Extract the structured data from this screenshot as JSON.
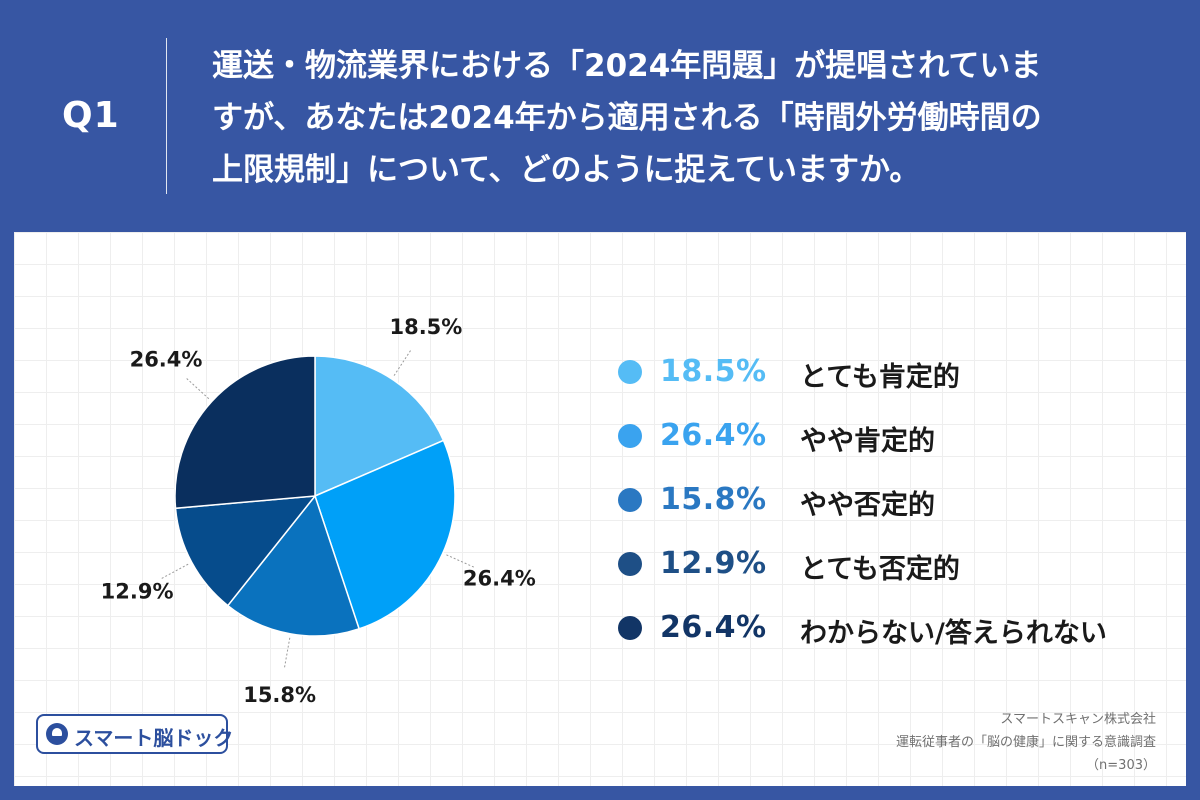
{
  "header": {
    "qnum": "Q1",
    "question_lines": [
      "運送・物流業界における「2024年問題」が提唱されていま",
      "すが、あなたは2024年から適用される「時間外労働時間の",
      "上限規制」について、どのように捉えていますか。"
    ]
  },
  "chart_data": {
    "type": "pie",
    "title": "",
    "start_angle_deg": 0,
    "direction": "clockwise",
    "categories": [
      "とても肯定的",
      "やや肯定的",
      "やや否定的",
      "とても否定的",
      "わからない/答えられない"
    ],
    "values": [
      18.5,
      26.4,
      15.8,
      12.9,
      26.4
    ],
    "data_labels": [
      "18.5%",
      "26.4%",
      "15.8%",
      "12.9%",
      "26.4%"
    ],
    "colors": [
      "#55bcf5",
      "#00a0f8",
      "#0a72be",
      "#064c8c",
      "#0a2f5e"
    ],
    "legend_position": "right"
  },
  "legend": {
    "items": [
      {
        "pct": "18.5%",
        "label": "とても肯定的",
        "color": "#55bcf5"
      },
      {
        "pct": "26.4%",
        "label": "やや肯定的",
        "color": "#3aa3ef"
      },
      {
        "pct": "15.8%",
        "label": "やや否定的",
        "color": "#2a78c2"
      },
      {
        "pct": "12.9%",
        "label": "とても否定的",
        "color": "#1e4f86"
      },
      {
        "pct": "26.4%",
        "label": "わからない/答えられない",
        "color": "#123566"
      }
    ]
  },
  "logo": {
    "text": "スマート脳ドック",
    "icon": "brain-dock-logo-icon"
  },
  "source": {
    "company": "スマートスキャン株式会社",
    "survey": "運転従事者の「脳の健康」に関する意識調査",
    "n": "（n=303）"
  }
}
